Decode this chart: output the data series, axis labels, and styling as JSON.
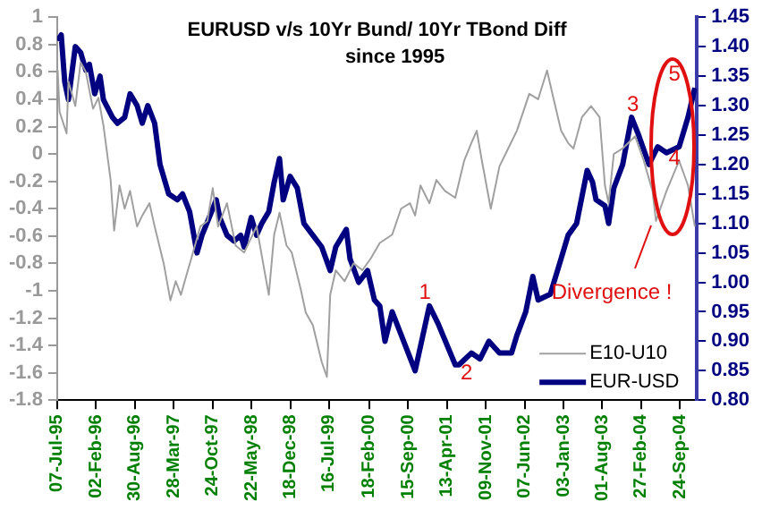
{
  "chart_data": {
    "type": "line",
    "title": "EURUSD v/s 10Yr Bund/ 10Yr TBond Diff",
    "subtitle": "since 1995",
    "xlim": [
      "1995-07-07",
      "2004-12-24"
    ],
    "xticks": [
      {
        "value": "1995-07-07",
        "label": "07-Jul-95"
      },
      {
        "value": "1996-02-02",
        "label": "02-Feb-96"
      },
      {
        "value": "1996-08-30",
        "label": "30-Aug-96"
      },
      {
        "value": "1997-03-28",
        "label": "28-Mar-97"
      },
      {
        "value": "1997-10-24",
        "label": "24-Oct-97"
      },
      {
        "value": "1998-05-22",
        "label": "22-May-98"
      },
      {
        "value": "1998-12-18",
        "label": "18-Dec-98"
      },
      {
        "value": "1999-07-16",
        "label": "16-Jul-99"
      },
      {
        "value": "2000-02-18",
        "label": "18-Feb-00"
      },
      {
        "value": "2000-09-15",
        "label": "15-Sep-00"
      },
      {
        "value": "2001-04-13",
        "label": "13-Apr-01"
      },
      {
        "value": "2001-11-09",
        "label": "09-Nov-01"
      },
      {
        "value": "2002-06-07",
        "label": "07-Jun-02"
      },
      {
        "value": "2003-01-03",
        "label": "03-Jan-03"
      },
      {
        "value": "2003-08-01",
        "label": "01-Aug-03"
      },
      {
        "value": "2004-02-27",
        "label": "27-Feb-04"
      },
      {
        "value": "2004-09-24",
        "label": "24-Sep-04"
      }
    ],
    "ylim": [
      -1.8,
      1
    ],
    "yticks": [
      -1.8,
      -1.6,
      -1.4,
      -1.2,
      -1,
      -0.8,
      -0.6,
      -0.4,
      -0.2,
      0,
      0.2,
      0.4,
      0.6,
      0.8,
      1
    ],
    "y2lim": [
      0.8,
      1.45
    ],
    "y2ticks": [
      {
        "value": 0.8,
        "label": "0.80"
      },
      0.85,
      {
        "value": 0.9,
        "label": "0.90"
      },
      0.95,
      {
        "value": 1,
        "label": "1.00"
      },
      1.05,
      {
        "value": 1.1,
        "label": "1.10"
      },
      1.15,
      {
        "value": 1.2,
        "label": "1.20"
      },
      1.25,
      {
        "value": 1.3,
        "label": "1.30"
      },
      1.35,
      {
        "value": 1.4,
        "label": "1.40"
      },
      1.45
    ],
    "grid": false,
    "legend": "bottom right",
    "marker": "none",
    "line_style": "solid",
    "series": [
      {
        "name": "E10-U10",
        "color": "#a0a0a0",
        "x": [
          "1995-07-10",
          "1995-07-20",
          "1995-08-27",
          "1995-09-06",
          "1995-10-13",
          "1995-11-11",
          "1995-12-09",
          "1996-01-17",
          "1996-02-15",
          "1996-03-13",
          "1996-04-21",
          "1996-05-10",
          "1996-06-08",
          "1996-07-06",
          "1996-08-04",
          "1996-09-11",
          "1996-10-09",
          "1996-11-17",
          "1996-12-15",
          "1997-02-02",
          "1997-03-10",
          "1997-04-08",
          "1997-05-06",
          "1997-06-04",
          "1997-07-02",
          "1997-08-19",
          "1997-09-26",
          "1997-10-25",
          "1997-11-23",
          "1998-01-10",
          "1998-02-26",
          "1998-04-13",
          "1998-06-19",
          "1998-08-24",
          "1998-09-22",
          "1998-10-21",
          "1998-11-28",
          "1998-12-26",
          "1999-02-13",
          "1999-03-12",
          "1999-04-19",
          "1999-06-06",
          "1999-07-04",
          "1999-07-22",
          "1999-08-21",
          "1999-10-08",
          "1999-11-25",
          "2000-01-12",
          "2000-02-28",
          "2000-04-15",
          "2000-06-21",
          "2000-08-08",
          "2000-09-25",
          "2000-10-23",
          "2000-11-21",
          "2001-01-08",
          "2001-02-15",
          "2001-04-02",
          "2001-05-28",
          "2001-07-15",
          "2001-08-23",
          "2001-09-21",
          "2001-10-19",
          "2001-12-06",
          "2002-01-22",
          "2002-03-10",
          "2002-04-26",
          "2002-07-02",
          "2002-08-19",
          "2002-10-06",
          "2002-11-04",
          "2002-12-21",
          "2003-01-28",
          "2003-02-26",
          "2003-04-13",
          "2003-06-01",
          "2003-07-17",
          "2003-08-15",
          "2003-09-04",
          "2003-10-02",
          "2003-11-19",
          "2004-01-25",
          "2004-03-12",
          "2004-04-28",
          "2004-05-17",
          "2004-07-13",
          "2004-09-19",
          "2004-11-06",
          "2004-12-13"
        ],
        "values": [
          0.61,
          0.31,
          0.15,
          0.53,
          0.35,
          0.67,
          0.6,
          0.33,
          0.41,
          0.21,
          -0.19,
          -0.56,
          -0.23,
          -0.4,
          -0.27,
          -0.53,
          -0.45,
          -0.36,
          -0.53,
          -0.8,
          -1.07,
          -0.93,
          -1.03,
          -0.89,
          -0.76,
          -0.53,
          -0.49,
          -0.25,
          -0.53,
          -0.36,
          -0.67,
          -0.72,
          -0.53,
          -1.03,
          -0.59,
          -0.43,
          -0.67,
          -0.72,
          -0.99,
          -1.16,
          -1.25,
          -1.52,
          -1.63,
          -1.03,
          -0.85,
          -0.93,
          -0.8,
          -0.85,
          -0.76,
          -0.65,
          -0.59,
          -0.4,
          -0.36,
          -0.45,
          -0.23,
          -0.36,
          -0.19,
          -0.27,
          -0.32,
          -0.05,
          0.08,
          0.17,
          -0.05,
          -0.4,
          -0.09,
          0.04,
          0.17,
          0.44,
          0.4,
          0.61,
          0.44,
          0.17,
          0.08,
          0.04,
          0.27,
          0.35,
          0.27,
          -0.23,
          -0.36,
          0,
          0.04,
          0.13,
          -0.05,
          -0.27,
          -0.49,
          -0.27,
          -0.05,
          -0.23,
          -0.53
        ]
      },
      {
        "name": "EUR-USD",
        "color": "#000080",
        "axis": "y2",
        "x": [
          "1995-07-10",
          "1995-07-29",
          "1995-08-17",
          "1995-09-06",
          "1995-10-13",
          "1995-11-11",
          "1995-12-09",
          "1995-12-28",
          "1996-01-26",
          "1996-02-24",
          "1996-03-13",
          "1996-05-01",
          "1996-05-28",
          "1996-07-06",
          "1996-08-04",
          "1996-09-11",
          "1996-10-09",
          "1996-11-08",
          "1996-12-15",
          "1997-01-13",
          "1997-03-01",
          "1997-04-17",
          "1997-05-15",
          "1997-06-22",
          "1997-08-01",
          "1997-08-28",
          "1997-10-06",
          "1997-11-13",
          "1997-12-02",
          "1998-01-10",
          "1998-02-17",
          "1998-03-25",
          "1998-04-13",
          "1998-05-21",
          "1998-06-19",
          "1998-07-17",
          "1998-08-24",
          "1998-09-22",
          "1998-10-21",
          "1998-11-10",
          "1998-12-17",
          "1999-01-25",
          "1999-03-02",
          "1999-04-19",
          "1999-06-06",
          "1999-07-22",
          "1999-08-21",
          "1999-10-17",
          "1999-11-06",
          "1999-12-23",
          "2000-02-09",
          "2000-03-17",
          "2000-04-15",
          "2000-05-13",
          "2000-06-21",
          "2000-10-23",
          "2001-01-08",
          "2001-02-24",
          "2001-05-28",
          "2001-06-17",
          "2001-08-23",
          "2001-10-09",
          "2001-11-26",
          "2002-01-22",
          "2002-03-28",
          "2002-04-26",
          "2002-06-13",
          "2002-07-21",
          "2002-08-19",
          "2002-10-24",
          "2002-12-21",
          "2003-01-28",
          "2003-03-15",
          "2003-05-11",
          "2003-06-09",
          "2003-06-28",
          "2003-08-15",
          "2003-09-04",
          "2003-10-02",
          "2003-11-19",
          "2004-01-06",
          "2004-02-13",
          "2004-04-09",
          "2004-05-26",
          "2004-07-13",
          "2004-09-19",
          "2004-11-06",
          "2004-12-13"
        ],
        "values": [
          1.41,
          1.42,
          1.34,
          1.31,
          1.4,
          1.39,
          1.36,
          1.37,
          1.32,
          1.35,
          1.31,
          1.28,
          1.27,
          1.28,
          1.32,
          1.3,
          1.27,
          1.3,
          1.27,
          1.2,
          1.15,
          1.14,
          1.15,
          1.12,
          1.05,
          1.08,
          1.11,
          1.14,
          1.11,
          1.08,
          1.07,
          1.08,
          1.06,
          1.11,
          1.08,
          1.1,
          1.12,
          1.17,
          1.21,
          1.14,
          1.18,
          1.16,
          1.1,
          1.08,
          1.06,
          1.02,
          1.06,
          1.09,
          1.04,
          1,
          1.02,
          0.97,
          0.96,
          0.9,
          0.95,
          0.85,
          0.96,
          0.93,
          0.86,
          0.86,
          0.88,
          0.87,
          0.9,
          0.88,
          0.88,
          0.91,
          0.95,
          1.01,
          0.97,
          0.98,
          1.04,
          1.08,
          1.1,
          1.19,
          1.17,
          1.14,
          1.13,
          1.1,
          1.16,
          1.2,
          1.28,
          1.25,
          1.2,
          1.23,
          1.22,
          1.23,
          1.28,
          1.33
        ]
      }
    ],
    "annotations": [
      "1",
      "2",
      "3",
      "4",
      "5",
      "Divergence !"
    ]
  }
}
